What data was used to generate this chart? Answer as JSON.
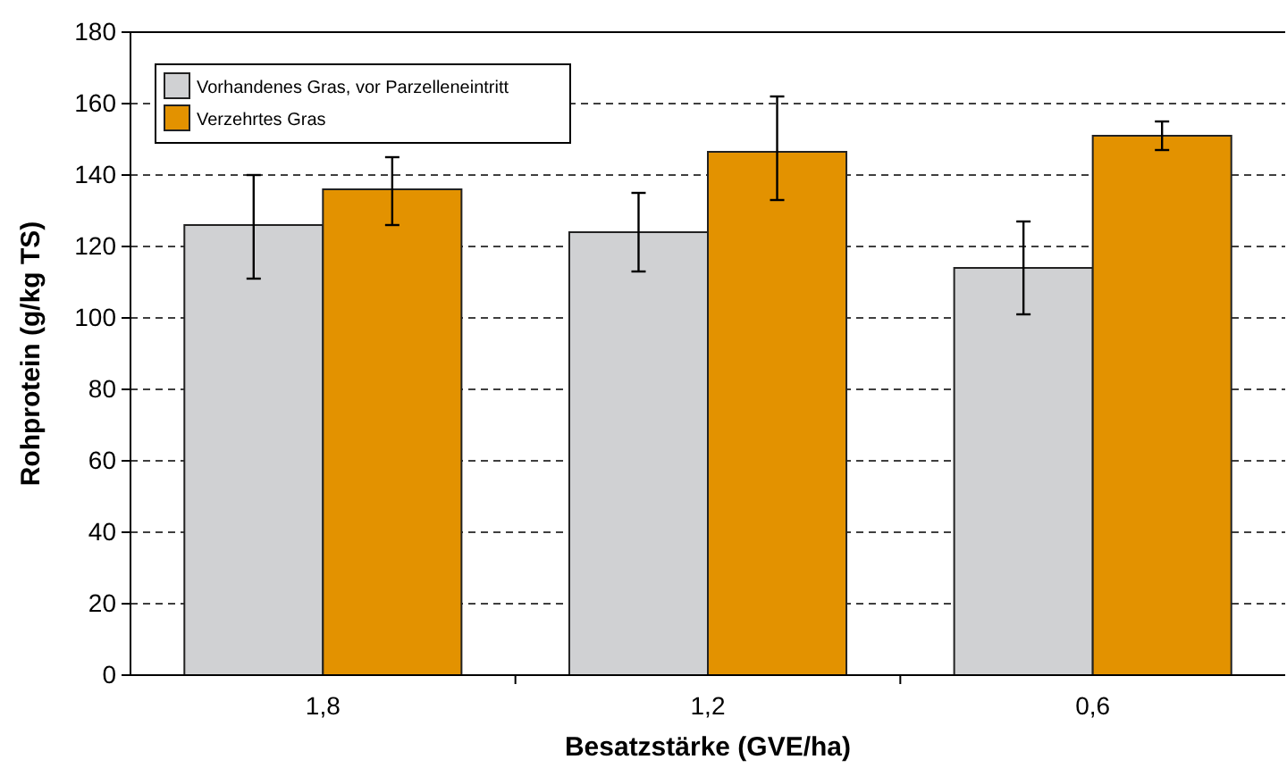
{
  "chart_data": {
    "type": "bar",
    "xlabel": "Besatzstärke (GVE/ha)",
    "ylabel": "Rohprotein (g/kg TS)",
    "categories": [
      "1,8",
      "1,2",
      "0,6"
    ],
    "series": [
      {
        "name": "Vorhandenes Gras, vor Parzelleneintritt",
        "color": "#d0d1d3",
        "values": [
          126,
          124,
          114
        ],
        "errors": [
          [
            111,
            140
          ],
          [
            113,
            135
          ],
          [
            101,
            127
          ]
        ]
      },
      {
        "name": "Verzehrtes Gras",
        "color": "#e39200",
        "values": [
          136,
          146.5,
          151
        ],
        "errors": [
          [
            126,
            145
          ],
          [
            133,
            162
          ],
          [
            147,
            155
          ]
        ]
      }
    ],
    "ylim": [
      0,
      180
    ],
    "yticks": [
      0,
      20,
      40,
      60,
      80,
      100,
      120,
      140,
      160,
      180
    ],
    "grid": "y",
    "legend": "top left"
  }
}
